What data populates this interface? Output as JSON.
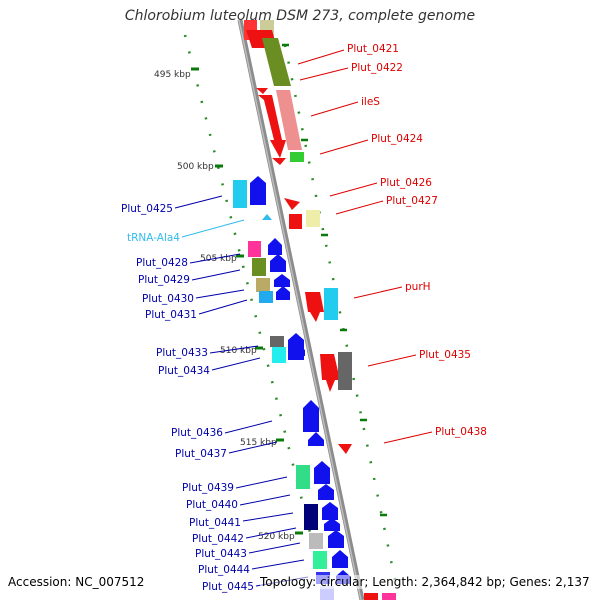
{
  "title": "Chlorobium luteolum DSM 273, complete genome",
  "accession": "Accession: NC_007512",
  "topology": "Topology: circular; Length: 2,364,842 bp; Genes: 2,137",
  "colors": {
    "backbone": "#8c8c8c",
    "ticks": "#0a7a0a",
    "right_label": "#dd0000",
    "left_label": "#0000aa",
    "trna_label": "#33bbee"
  },
  "kbp_labels": [
    "495 kbp",
    "500 kbp",
    "505 kbp",
    "510 kbp",
    "515 kbp",
    "520 kbp"
  ],
  "right_labels": [
    "Plut_0421",
    "Plut_0422",
    "ileS",
    "Plut_0424",
    "Plut_0426",
    "Plut_0427",
    "purH",
    "Plut_0435",
    "Plut_0438"
  ],
  "left_labels": [
    "Plut_0425",
    "tRNA-Ala4",
    "Plut_0428",
    "Plut_0429",
    "Plut_0430",
    "Plut_0431",
    "Plut_0433",
    "Plut_0434",
    "Plut_0436",
    "Plut_0437",
    "Plut_0439",
    "Plut_0440",
    "Plut_0441",
    "Plut_0442",
    "Plut_0443",
    "Plut_0444",
    "Plut_0445"
  ]
}
